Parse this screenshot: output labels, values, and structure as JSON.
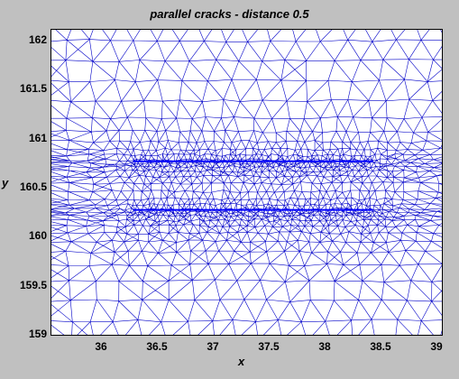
{
  "figure": {
    "background": "#c0c0c0",
    "mesh_color": "#0000c8",
    "crack_color": "#0000ff"
  },
  "chart_data": {
    "type": "mesh",
    "title": "parallel cracks - distance 0.5",
    "xlabel": "x",
    "ylabel": "y",
    "xlim": [
      35.55,
      39.05
    ],
    "ylim": [
      158.95,
      162.1
    ],
    "xticks": [
      "36",
      "36.5",
      "37",
      "37.5",
      "38",
      "38.5",
      "39"
    ],
    "yticks": [
      "162",
      "161.5",
      "161",
      "160.5",
      "160",
      "159.5",
      "159"
    ],
    "cracks": [
      {
        "x": [
          36.28,
          38.42
        ],
        "y": 160.75
      },
      {
        "x": [
          36.28,
          38.42
        ],
        "y": 160.25
      }
    ],
    "grid": false
  }
}
